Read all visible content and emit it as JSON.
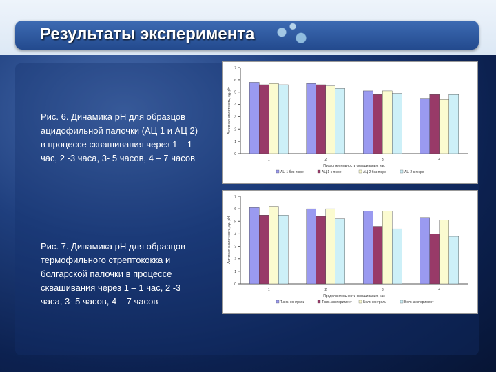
{
  "slide": {
    "title": "Результаты эксперимента",
    "caption1": "Рис. 6. Динамика pH для образцов ацидофильной палочки (АЦ 1 и АЦ 2) в процессе сквашивания через 1 – 1 час, 2 -3 часа, 3- 5 часов, 4 – 7 часов",
    "caption2": "Рис. 7. Динамика pH для образцов термофильного стрептококка и болгарской палочки в процессе сквашивания через 1 – 1 час, 2 -3 часа, 3- 5 часов, 4 – 7 часов"
  },
  "chart_data": [
    {
      "type": "bar",
      "ylabel": "Активная кислотность, ед. pH",
      "xlabel": "Продолжительность сквашивания, час",
      "categories": [
        "1",
        "2",
        "3",
        "4"
      ],
      "yticks": [
        "0",
        "1",
        "2",
        "3",
        "4",
        "5",
        "6",
        "7"
      ],
      "ylim": [
        0,
        7
      ],
      "grid": false,
      "legend_position": "bottom",
      "series": [
        {
          "name": "АЦ 1 без пюре",
          "color": "#9a9af0",
          "values": [
            5.8,
            5.7,
            5.1,
            4.5
          ]
        },
        {
          "name": "АЦ 1 с пюре",
          "color": "#983a68",
          "values": [
            5.6,
            5.6,
            4.8,
            4.8
          ]
        },
        {
          "name": "АЦ 2 без пюре",
          "color": "#fbfbd0",
          "values": [
            5.7,
            5.5,
            5.1,
            4.4
          ]
        },
        {
          "name": "АЦ 2 с пюре",
          "color": "#cdf0f8",
          "values": [
            5.6,
            5.3,
            4.9,
            4.8
          ]
        }
      ]
    },
    {
      "type": "bar",
      "ylabel": "Активная кислотность, ед. pH",
      "xlabel": "Продолжительность сквашивания, час",
      "categories": [
        "1",
        "2",
        "3",
        "4"
      ],
      "yticks": [
        "0",
        "1",
        "2",
        "3",
        "4",
        "5",
        "6",
        "7"
      ],
      "ylim": [
        0,
        7
      ],
      "grid": false,
      "legend_position": "bottom",
      "series": [
        {
          "name": "Т.кис. контроль",
          "color": "#9a9af0",
          "values": [
            6.1,
            6.0,
            5.8,
            5.3
          ]
        },
        {
          "name": "Т.кис. эксперимент",
          "color": "#983a68",
          "values": [
            5.5,
            5.4,
            4.6,
            4.0
          ]
        },
        {
          "name": "Болг. контроль",
          "color": "#fbfbd0",
          "values": [
            6.2,
            6.0,
            5.8,
            5.1
          ]
        },
        {
          "name": "Болг. эксперимент",
          "color": "#cdf0f8",
          "values": [
            5.5,
            5.2,
            4.4,
            3.8
          ]
        }
      ]
    }
  ]
}
